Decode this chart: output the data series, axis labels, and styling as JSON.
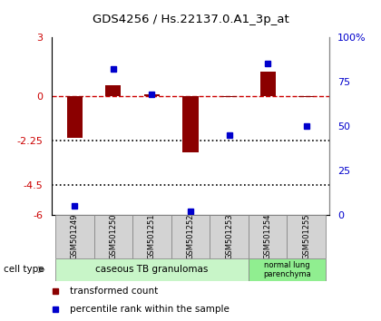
{
  "title": "GDS4256 / Hs.22137.0.A1_3p_at",
  "samples": [
    "GSM501249",
    "GSM501250",
    "GSM501251",
    "GSM501252",
    "GSM501253",
    "GSM501254",
    "GSM501255"
  ],
  "transformed_count": [
    -2.1,
    0.55,
    0.12,
    -2.85,
    -0.05,
    1.25,
    -0.05
  ],
  "percentile_rank": [
    5,
    82,
    68,
    2,
    45,
    85,
    50
  ],
  "ylim_left": [
    -6,
    3
  ],
  "ylim_right": [
    0,
    100
  ],
  "yticks_left": [
    3,
    0,
    -2.25,
    -4.5,
    -6
  ],
  "yticks_right": [
    100,
    75,
    50,
    25,
    0
  ],
  "ytick_labels_left": [
    "3",
    "0",
    "-2.25",
    "-4.5",
    "-6"
  ],
  "ytick_labels_right": [
    "100%",
    "75",
    "50",
    "25",
    "0"
  ],
  "dotted_lines": [
    -2.25,
    -4.5
  ],
  "bar_color": "#8B0000",
  "dot_color": "#0000CC",
  "background_color": "#ffffff",
  "group1_label": "caseous TB granulomas",
  "group1_indices": [
    0,
    1,
    2,
    3,
    4
  ],
  "group1_color": "#c8f5c8",
  "group2_label": "normal lung\nparenchyma",
  "group2_indices": [
    5,
    6
  ],
  "group2_color": "#90ee90",
  "cell_type_label": "cell type",
  "legend1": "transformed count",
  "legend2": "percentile rank within the sample",
  "dashed_line_color": "#cc0000",
  "dotted_line_color": "#000000",
  "label_box_color": "#d3d3d3",
  "label_box_edge": "#888888"
}
